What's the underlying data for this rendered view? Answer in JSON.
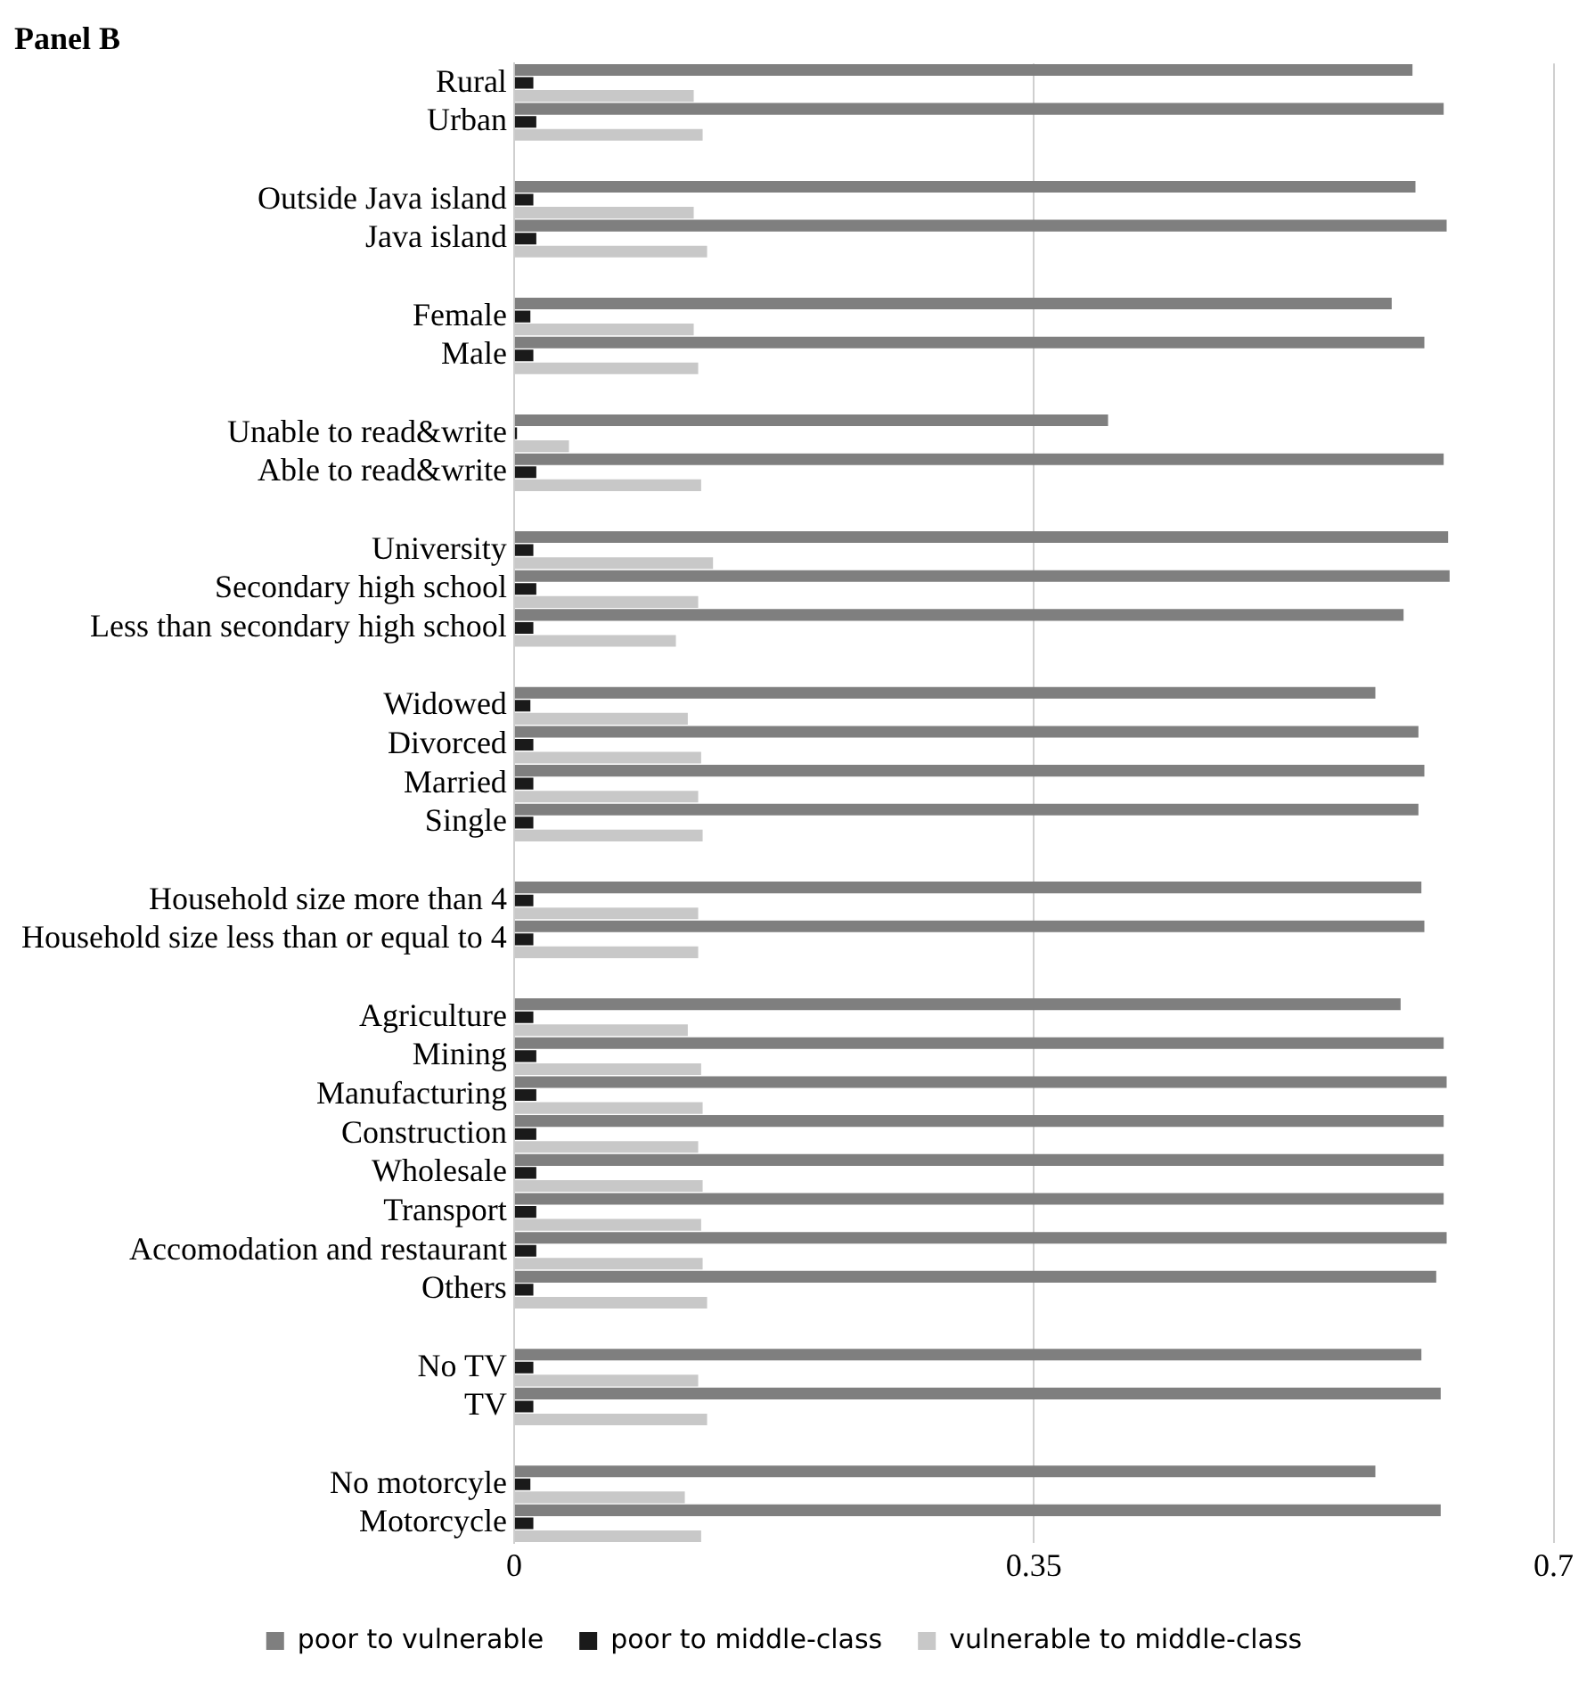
{
  "chart_data": {
    "type": "bar",
    "orientation": "horizontal",
    "title": "Panel B",
    "categories": [
      "Rural",
      "Urban",
      null,
      "Outside Java island",
      "Java island",
      null,
      "Female",
      "Male",
      null,
      "Unable to read&write",
      "Able to read&write",
      null,
      "University",
      "Secondary high school",
      "Less than secondary high school",
      null,
      "Widowed",
      "Divorced",
      "Married",
      "Single",
      null,
      "Household size more than 4",
      "Household size less than or equal to 4",
      null,
      "Agriculture",
      "Mining",
      "Manufacturing",
      "Construction",
      "Wholesale",
      "Transport",
      "Accomodation and restaurant",
      "Others",
      null,
      "No TV",
      "TV",
      null,
      "No motorcyle",
      "Motorcycle"
    ],
    "series": [
      {
        "name": "poor to vulnerable",
        "color": "#7f7f7f",
        "values": [
          0.605,
          0.626,
          null,
          0.607,
          0.628,
          null,
          0.591,
          0.613,
          null,
          0.4,
          0.626,
          null,
          0.629,
          0.63,
          0.599,
          null,
          0.58,
          0.609,
          0.613,
          0.609,
          null,
          0.611,
          0.613,
          null,
          0.597,
          0.626,
          0.628,
          0.626,
          0.626,
          0.626,
          0.628,
          0.621,
          null,
          0.611,
          0.624,
          null,
          0.58,
          0.624
        ]
      },
      {
        "name": "poor to middle-class",
        "color": "#1a1a1a",
        "values": [
          0.013,
          0.015,
          null,
          0.013,
          0.015,
          null,
          0.011,
          0.013,
          null,
          0.002,
          0.015,
          null,
          0.013,
          0.015,
          0.013,
          null,
          0.011,
          0.013,
          0.013,
          0.013,
          null,
          0.013,
          0.013,
          null,
          0.013,
          0.015,
          0.015,
          0.015,
          0.015,
          0.015,
          0.015,
          0.013,
          null,
          0.013,
          0.013,
          null,
          0.011,
          0.013
        ]
      },
      {
        "name": "vulnerable to middle-class",
        "color": "#c8c8c8",
        "values": [
          0.121,
          0.127,
          null,
          0.121,
          0.13,
          null,
          0.121,
          0.124,
          null,
          0.037,
          0.126,
          null,
          0.134,
          0.124,
          0.109,
          null,
          0.117,
          0.126,
          0.124,
          0.127,
          null,
          0.124,
          0.124,
          null,
          0.117,
          0.126,
          0.127,
          0.124,
          0.127,
          0.126,
          0.127,
          0.13,
          null,
          0.124,
          0.13,
          null,
          0.115,
          0.126
        ]
      }
    ],
    "xlim": [
      0,
      0.7
    ],
    "xticks": [
      0,
      0.35,
      0.7
    ],
    "grid": "x",
    "legend": "bottom"
  }
}
